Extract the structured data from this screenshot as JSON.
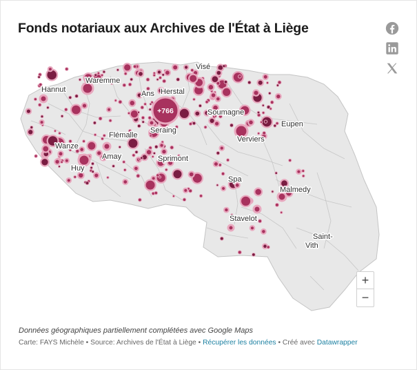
{
  "title": "Fonds notariaux aux Archives de l'État à Liège",
  "share": {
    "facebook": "facebook-icon",
    "linkedin": "linkedin-icon",
    "x": "x-icon"
  },
  "colors": {
    "accent": "#a8325e",
    "dark": "#7a1d42",
    "pale": "#e8a9bf",
    "land": "#e8e8e8",
    "border": "#bdbdbd"
  },
  "map": {
    "cluster_label": "+766",
    "places": [
      "Visé",
      "Waremme",
      "Hannut",
      "Ans",
      "Herstal",
      "Soumagne",
      "Seraing",
      "Flémalle",
      "Eupen",
      "Verviers",
      "Wanze",
      "Amay",
      "Sprimont",
      "Huy",
      "Spa",
      "Malmedy",
      "Stavelot",
      "Saint-",
      "Vith"
    ]
  },
  "zoom": {
    "in": "+",
    "out": "−"
  },
  "note": "Données géographiques partiellement complétées avec Google Maps",
  "footer": {
    "credit": "Carte: FAYS Michèle • Source: Archives de l'État à Liège • ",
    "get_data": "Récupérer les données",
    "sep": " • Créé avec ",
    "made_with": "Datawrapper"
  }
}
